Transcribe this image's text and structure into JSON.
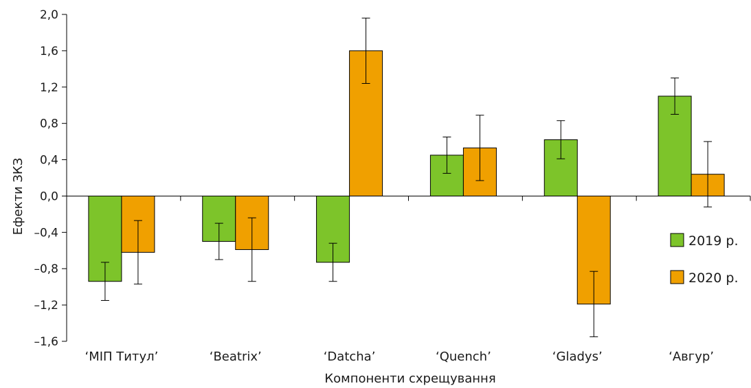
{
  "chart_data": {
    "type": "bar",
    "xlabel": "Компоненти схрещування",
    "ylabel": "Ефекти ЗКЗ",
    "ylim": [
      -1.6,
      2.0
    ],
    "yticks": [
      "2,0",
      "1,6",
      "1,2",
      "0,8",
      "0,4",
      "0,0",
      "–0,4",
      "–0,8",
      "–1,2",
      "–1,6"
    ],
    "ytick_values": [
      2.0,
      1.6,
      1.2,
      0.8,
      0.4,
      0.0,
      -0.4,
      -0.8,
      -1.2,
      -1.6
    ],
    "categories": [
      "‘МІП Титул’",
      "‘Beatrix’",
      "‘Datcha’",
      "‘Quench’",
      "‘Gladys’",
      "‘Авгур’"
    ],
    "series": [
      {
        "name": "2019 р.",
        "color": "#7dc42a",
        "values": [
          -0.94,
          -0.5,
          -0.73,
          0.45,
          0.62,
          1.1
        ],
        "errors": [
          0.21,
          0.2,
          0.21,
          0.2,
          0.21,
          0.2
        ]
      },
      {
        "name": "2020 р.",
        "color": "#f0a000",
        "values": [
          -0.62,
          -0.59,
          1.6,
          0.53,
          -1.19,
          0.24
        ],
        "errors": [
          0.35,
          0.35,
          0.36,
          0.36,
          0.36,
          0.36
        ]
      }
    ],
    "legend_position": "right",
    "grid": false
  }
}
